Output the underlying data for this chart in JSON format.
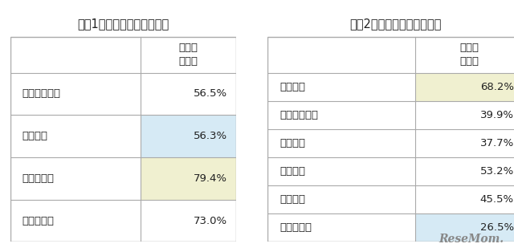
{
  "table1": {
    "title": "【袆1】国公立大との併願率",
    "col_header": "国公立\n併願率",
    "rows": [
      {
        "name": "関西学院大学",
        "value": "56.5%",
        "bg_name": "#ffffff",
        "bg_val": "#ffffff"
      },
      {
        "name": "関西大学",
        "value": "56.3%",
        "bg_name": "#ffffff",
        "bg_val": "#d6eaf5"
      },
      {
        "name": "同志社大学",
        "value": "79.4%",
        "bg_name": "#ffffff",
        "bg_val": "#f0f0d0"
      },
      {
        "name": "立命館大学",
        "value": "73.0%",
        "bg_name": "#ffffff",
        "bg_val": "#ffffff"
      }
    ]
  },
  "table2": {
    "title": "【袆2】国公立大との併願率",
    "col_header": "国公立\n併願率",
    "rows": [
      {
        "name": "明治大学",
        "value": "68.2%",
        "bg_name": "#ffffff",
        "bg_val": "#f0f0d0"
      },
      {
        "name": "青山学院大学",
        "value": "39.9%",
        "bg_name": "#ffffff",
        "bg_val": "#ffffff"
      },
      {
        "name": "立教大学",
        "value": "37.7%",
        "bg_name": "#ffffff",
        "bg_val": "#ffffff"
      },
      {
        "name": "中央大学",
        "value": "53.2%",
        "bg_name": "#ffffff",
        "bg_val": "#ffffff"
      },
      {
        "name": "法政大学",
        "value": "45.5%",
        "bg_name": "#ffffff",
        "bg_val": "#ffffff"
      },
      {
        "name": "学習院大学",
        "value": "26.5%",
        "bg_name": "#ffffff",
        "bg_val": "#d6eaf5"
      }
    ]
  },
  "border_color": "#aaaaaa",
  "text_color": "#222222",
  "bg_color": "#ffffff",
  "title_fontsize": 10.5,
  "cell_fontsize": 9.5,
  "header_fontsize": 9.5
}
